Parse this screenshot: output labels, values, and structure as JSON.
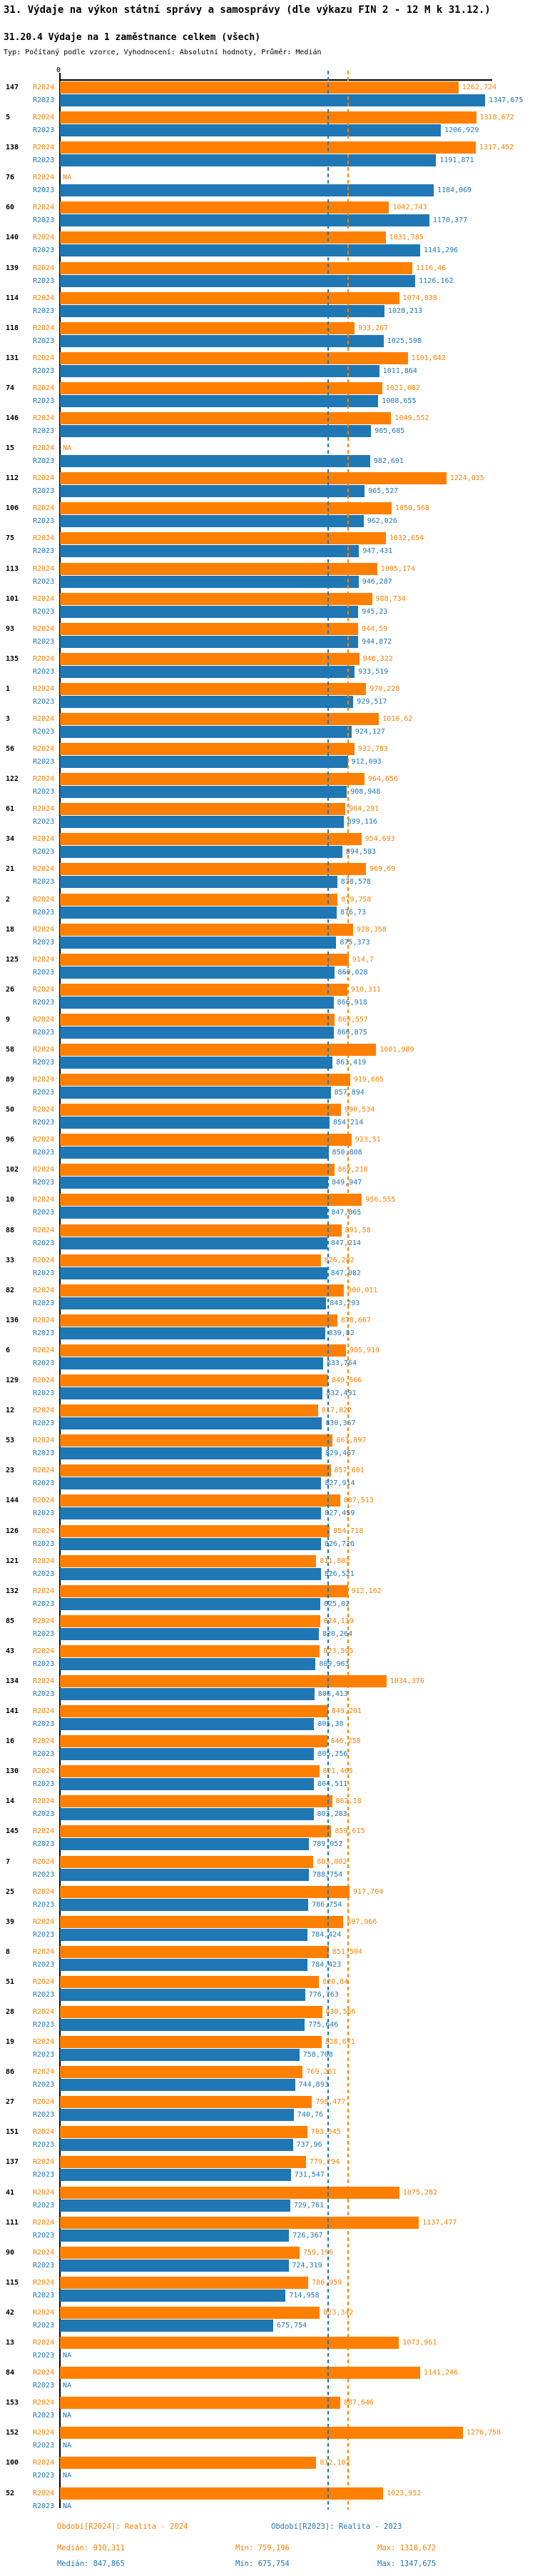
{
  "title": "31. Výdaje na výkon státní správy a samosprávy (dle výkazu FIN 2 - 12 M k 31.12.)",
  "subtitle": "31.20.4 Výdaje na 1 zaměstnance celkem (všech)",
  "meta": "Typ: Počítaný podle vzorce, Vyhodnocení: Absolutní hodnoty, Průměr: Medián",
  "axis": {
    "zero_label": "0"
  },
  "colors": {
    "r2024": "#ff8000",
    "r2023": "#1f77b4",
    "axis": "#000000"
  },
  "series_labels": {
    "r2024": "R2024",
    "r2023": "R2023"
  },
  "na_label": "NA",
  "legend": {
    "r2024_period": "Období[R2024]: Realita - 2024",
    "r2023_period": "Období[R2023]: Realita - 2023",
    "r2024_stats": {
      "median_label": "Medián: 910,311",
      "min_label": "Min: 759,196",
      "max_label": "Max: 1318,672",
      "median": 910.311,
      "min": 759.196,
      "max": 1318.672
    },
    "r2023_stats": {
      "median_label": "Medián: 847,865",
      "min_label": "Min: 675,754",
      "max_label": "Max: 1347,675",
      "median": 847.865,
      "min": 675.754,
      "max": 1347.675
    }
  },
  "chart_data": {
    "type": "bar",
    "orientation": "horizontal",
    "title": "31.20.4 Výdaje na 1 zaměstnance celkem (všech)",
    "xlabel": "",
    "ylabel": "",
    "xlim": [
      0,
      1370
    ],
    "grid": false,
    "legend_position": "bottom",
    "series_names": [
      "R2024",
      "R2023"
    ],
    "rows": [
      {
        "id": "147",
        "r2024": 1262.724,
        "r2023": 1347.675
      },
      {
        "id": "5",
        "r2024": 1318.672,
        "r2023": 1206.929
      },
      {
        "id": "138",
        "r2024": 1317.452,
        "r2023": 1191.871
      },
      {
        "id": "76",
        "r2024": null,
        "r2023": 1184.069
      },
      {
        "id": "60",
        "r2024": 1042.743,
        "r2023": 1170.377
      },
      {
        "id": "140",
        "r2024": 1031.785,
        "r2023": 1141.296
      },
      {
        "id": "139",
        "r2024": 1116.46,
        "r2023": 1126.162
      },
      {
        "id": "114",
        "r2024": 1074.838,
        "r2023": 1028.213
      },
      {
        "id": "118",
        "r2024": 933.267,
        "r2023": 1025.598
      },
      {
        "id": "131",
        "r2024": 1101.842,
        "r2023": 1011.864
      },
      {
        "id": "74",
        "r2024": 1021.082,
        "r2023": 1008.655
      },
      {
        "id": "146",
        "r2024": 1049.552,
        "r2023": 985.685
      },
      {
        "id": "15",
        "r2024": null,
        "r2023": 982.691
      },
      {
        "id": "112",
        "r2024": 1224.015,
        "r2023": 965.527
      },
      {
        "id": "106",
        "r2024": 1050.568,
        "r2023": 962.026
      },
      {
        "id": "75",
        "r2024": 1032.654,
        "r2023": 947.431
      },
      {
        "id": "113",
        "r2024": 1005.174,
        "r2023": 946.287
      },
      {
        "id": "101",
        "r2024": 988.734,
        "r2023": 945.23
      },
      {
        "id": "93",
        "r2024": 944.59,
        "r2023": 944.872
      },
      {
        "id": "135",
        "r2024": 948.322,
        "r2023": 933.519
      },
      {
        "id": "1",
        "r2024": 970.228,
        "r2023": 929.517
      },
      {
        "id": "3",
        "r2024": 1010.62,
        "r2023": 924.127
      },
      {
        "id": "56",
        "r2024": 932.783,
        "r2023": 912.093
      },
      {
        "id": "122",
        "r2024": 964.656,
        "r2023": 908.948
      },
      {
        "id": "61",
        "r2024": 904.291,
        "r2023": 899.116
      },
      {
        "id": "34",
        "r2024": 954.693,
        "r2023": 894.583
      },
      {
        "id": "21",
        "r2024": 969.69,
        "r2023": 878.578
      },
      {
        "id": "2",
        "r2024": 879.758,
        "r2023": 876.73
      },
      {
        "id": "18",
        "r2024": 928.358,
        "r2023": 875.373
      },
      {
        "id": "125",
        "r2024": 914.7,
        "r2023": 869.028
      },
      {
        "id": "26",
        "r2024": 910.311,
        "r2023": 866.918
      },
      {
        "id": "9",
        "r2024": 869.557,
        "r2023": 866.875
      },
      {
        "id": "58",
        "r2024": 1001.989,
        "r2023": 863.419
      },
      {
        "id": "89",
        "r2024": 919.605,
        "r2023": 857.894
      },
      {
        "id": "50",
        "r2024": 890.534,
        "r2023": 854.214
      },
      {
        "id": "96",
        "r2024": 923.51,
        "r2023": 850.808
      },
      {
        "id": "102",
        "r2024": 869.218,
        "r2023": 849.947
      },
      {
        "id": "10",
        "r2024": 956.555,
        "r2023": 847.865
      },
      {
        "id": "88",
        "r2024": 891.58,
        "r2023": 847.214
      },
      {
        "id": "33",
        "r2024": 826.282,
        "r2023": 847.082
      },
      {
        "id": "82",
        "r2024": 900.011,
        "r2023": 843.293
      },
      {
        "id": "136",
        "r2024": 878.667,
        "r2023": 839.82
      },
      {
        "id": "6",
        "r2024": 905.919,
        "r2023": 833.764
      },
      {
        "id": "129",
        "r2024": 849.666,
        "r2023": 832.491
      },
      {
        "id": "12",
        "r2024": 817.822,
        "r2023": 830.367
      },
      {
        "id": "53",
        "r2024": 863.897,
        "r2023": 829.467
      },
      {
        "id": "23",
        "r2024": 857.601,
        "r2023": 827.914
      },
      {
        "id": "144",
        "r2024": 887.513,
        "r2023": 827.459
      },
      {
        "id": "126",
        "r2024": 854.718,
        "r2023": 826.726
      },
      {
        "id": "121",
        "r2024": 811.882,
        "r2023": 826.521
      },
      {
        "id": "132",
        "r2024": 912.162,
        "r2023": 825.02
      },
      {
        "id": "85",
        "r2024": 824.119,
        "r2023": 820.264
      },
      {
        "id": "43",
        "r2024": 823.595,
        "r2023": 809.963
      },
      {
        "id": "134",
        "r2024": 1034.376,
        "r2023": 806.413
      },
      {
        "id": "141",
        "r2024": 849.201,
        "r2023": 805.38
      },
      {
        "id": "16",
        "r2024": 846.258,
        "r2023": 805.256
      },
      {
        "id": "130",
        "r2024": 821.465,
        "r2023": 804.511
      },
      {
        "id": "14",
        "r2024": 862.18,
        "r2023": 803.283
      },
      {
        "id": "145",
        "r2024": 859.615,
        "r2023": 789.052
      },
      {
        "id": "7",
        "r2024": 803.002,
        "r2023": 788.754
      },
      {
        "id": "25",
        "r2024": 917.704,
        "r2023": 786.754
      },
      {
        "id": "39",
        "r2024": 897.966,
        "r2023": 784.424
      },
      {
        "id": "8",
        "r2024": 851.504,
        "r2023": 784.423
      },
      {
        "id": "51",
        "r2024": 820.84,
        "r2023": 776.763
      },
      {
        "id": "28",
        "r2024": 830.566,
        "r2023": 775.646
      },
      {
        "id": "19",
        "r2024": 828.671,
        "r2023": 758.708
      },
      {
        "id": "86",
        "r2024": 769.261,
        "r2023": 744.893
      },
      {
        "id": "27",
        "r2024": 798.477,
        "r2023": 740.76
      },
      {
        "id": "151",
        "r2024": 783.545,
        "r2023": 737.96
      },
      {
        "id": "137",
        "r2024": 779.294,
        "r2023": 731.547
      },
      {
        "id": "41",
        "r2024": 1075.282,
        "r2023": 729.761
      },
      {
        "id": "111",
        "r2024": 1137.477,
        "r2023": 726.367
      },
      {
        "id": "90",
        "r2024": 759.196,
        "r2023": 724.319
      },
      {
        "id": "115",
        "r2024": 786.959,
        "r2023": 714.958
      },
      {
        "id": "42",
        "r2024": 823.342,
        "r2023": 675.754
      },
      {
        "id": "13",
        "r2024": 1073.961,
        "r2023": null
      },
      {
        "id": "84",
        "r2024": 1141.246,
        "r2023": null
      },
      {
        "id": "153",
        "r2024": 887.646,
        "r2023": null
      },
      {
        "id": "152",
        "r2024": 1276.758,
        "r2023": null
      },
      {
        "id": "100",
        "r2024": 812.102,
        "r2023": null
      },
      {
        "id": "52",
        "r2024": 1023.952,
        "r2023": null
      }
    ]
  }
}
